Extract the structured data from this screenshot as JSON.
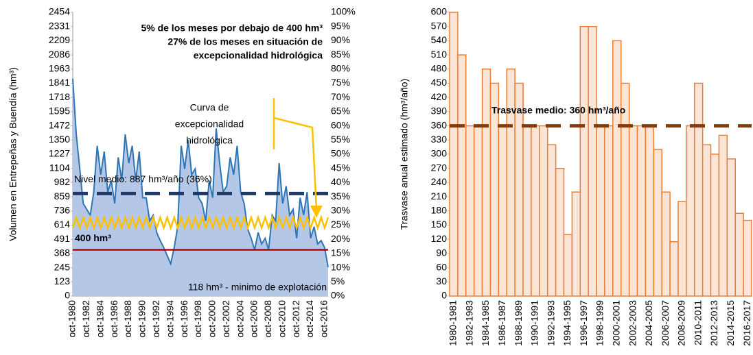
{
  "chart_data": [
    {
      "type": "area",
      "y_label": "Volumen en Entrepeñas y Buendía (hm³)",
      "categories": [
        "oct-1980",
        null,
        null,
        null,
        "oct-1982",
        null,
        null,
        null,
        "oct-1984",
        null,
        null,
        null,
        "oct-1986",
        null,
        null,
        null,
        "oct-1988",
        null,
        null,
        null,
        "oct-1990",
        null,
        null,
        null,
        "oct-1992",
        null,
        null,
        null,
        "oct-1994",
        null,
        null,
        null,
        "oct-1996",
        null,
        null,
        null,
        "oct-1998",
        null,
        null,
        null,
        "oct-2000",
        null,
        null,
        null,
        "oct-2002",
        null,
        null,
        null,
        "oct-2004",
        null,
        null,
        null,
        "oct-2006",
        null,
        null,
        null,
        "oct-2008",
        null,
        null,
        null,
        "oct-2010",
        null,
        null,
        null,
        "oct-2012",
        null,
        null,
        null,
        "oct-2014",
        null,
        null,
        null,
        "oct-2016",
        null
      ],
      "series": [
        {
          "name": "Volumen",
          "color": "#2e75b6",
          "fill": "#b4c7e7",
          "values": [
            1880,
            1400,
            1100,
            800,
            750,
            700,
            900,
            1300,
            1050,
            1250,
            900,
            1000,
            800,
            1200,
            1000,
            1400,
            1150,
            1300,
            1000,
            1250,
            850,
            850,
            650,
            700,
            550,
            480,
            420,
            350,
            280,
            420,
            600,
            1300,
            1100,
            1350,
            1050,
            1100,
            850,
            800,
            650,
            1000,
            850,
            1450,
            1150,
            900,
            950,
            1200,
            1050,
            1300,
            900,
            800,
            580,
            500,
            400,
            550,
            450,
            500,
            400,
            700,
            650,
            1150,
            800,
            950,
            700,
            750,
            500,
            850,
            700,
            900,
            500,
            600,
            450,
            480,
            420,
            250
          ]
        }
      ],
      "exceptional_curve": {
        "color": "#ffc000",
        "values": [
          590,
          680,
          590,
          680,
          590,
          680,
          590,
          680,
          590,
          680,
          590,
          680,
          590,
          680,
          590,
          680,
          590,
          680,
          590,
          680,
          590,
          680,
          590,
          680,
          590,
          680,
          590,
          680,
          590,
          680,
          590,
          680,
          590,
          680,
          590,
          680,
          590,
          680,
          590,
          680,
          590,
          680,
          590,
          680,
          590,
          680,
          590,
          680,
          590,
          680,
          590,
          680,
          590,
          680,
          590,
          680,
          590,
          680,
          590,
          680,
          590,
          680,
          590,
          680,
          590,
          680,
          590,
          680,
          590,
          680,
          590,
          680,
          590,
          680
        ]
      },
      "ylim": [
        0,
        2454
      ],
      "yticks": [
        0,
        123,
        245,
        368,
        491,
        614,
        736,
        859,
        982,
        1104,
        1227,
        1350,
        1472,
        1595,
        1718,
        1841,
        1963,
        2086,
        2209,
        2331,
        2454
      ],
      "y2lim": [
        0,
        100
      ],
      "y2ticks": [
        {
          "value": 0,
          "label": "0%"
        },
        {
          "value": 5,
          "label": "5%"
        },
        {
          "value": 10,
          "label": "10%"
        },
        {
          "value": 15,
          "label": "15%"
        },
        {
          "value": 20,
          "label": "20%"
        },
        {
          "value": 25,
          "label": "25%"
        },
        {
          "value": 30,
          "label": "30%"
        },
        {
          "value": 35,
          "label": "35%"
        },
        {
          "value": 40,
          "label": "40%"
        },
        {
          "value": 45,
          "label": "45%"
        },
        {
          "value": 50,
          "label": "50%"
        },
        {
          "value": 55,
          "label": "55%"
        },
        {
          "value": 60,
          "label": "60%"
        },
        {
          "value": 65,
          "label": "65%"
        },
        {
          "value": 70,
          "label": "70%"
        },
        {
          "value": 75,
          "label": "75%"
        },
        {
          "value": 80,
          "label": "80%"
        },
        {
          "value": 85,
          "label": "85%"
        },
        {
          "value": 90,
          "label": "90%"
        },
        {
          "value": 95,
          "label": "95%"
        },
        {
          "value": 100,
          "label": "100%"
        }
      ],
      "reference_lines": [
        {
          "value": 887,
          "label": "Nivel medio: 887 hm³/año (36%)",
          "color": "#1f3864",
          "label_color": "#8faadc",
          "dashed": true
        },
        {
          "value": 400,
          "label": "400 hm³",
          "color": "#c00000",
          "label_color": "#e00000",
          "dashed": false
        }
      ],
      "annotations": {
        "stats": [
          "5% de los meses por debajo de 400 hm³",
          "27% de los meses en situación de",
          "excepcionalidad hidrológica"
        ],
        "curve": [
          "Curva de",
          "excepcionalidad",
          "hidrológica"
        ],
        "minimum": "118 hm³ - minimo de explotación"
      }
    },
    {
      "type": "bar",
      "y_label": "Trasvase anual estimado (hm³/año)",
      "categories": [
        "1980-1981",
        null,
        "1982-1983",
        null,
        "1984-1985",
        null,
        "1986-1987",
        null,
        "1988-1989",
        null,
        "1990-1991",
        null,
        "1992-1993",
        null,
        "1994-1995",
        null,
        "1996-1997",
        null,
        "1998-1999",
        null,
        "2000-2001",
        null,
        "2002-2003",
        null,
        "2004-2005",
        null,
        "2006-2007",
        null,
        "2008-2009",
        null,
        "2010-2011",
        null,
        "2012-2013",
        null,
        "2014-2015",
        null,
        "2016-2017"
      ],
      "series": [
        {
          "name": "Trasvase",
          "color": "#ed7d31",
          "fill": "#fbe5d6",
          "values": [
            600,
            510,
            360,
            360,
            480,
            450,
            360,
            480,
            450,
            360,
            360,
            360,
            320,
            270,
            130,
            220,
            570,
            570,
            360,
            360,
            540,
            450,
            360,
            360,
            360,
            310,
            220,
            115,
            200,
            360,
            450,
            320,
            300,
            340,
            290,
            175,
            160
          ]
        }
      ],
      "ylim": [
        0,
        600
      ],
      "yticks": [
        0,
        30,
        60,
        90,
        120,
        150,
        180,
        210,
        240,
        270,
        300,
        330,
        360,
        390,
        420,
        450,
        480,
        510,
        540,
        570,
        600
      ],
      "reference_lines": [
        {
          "value": 360,
          "label": "Trasvase medio: 360 hm³/año",
          "color": "#843c0c",
          "label_color": "#843c0c",
          "dashed": true
        }
      ]
    }
  ]
}
